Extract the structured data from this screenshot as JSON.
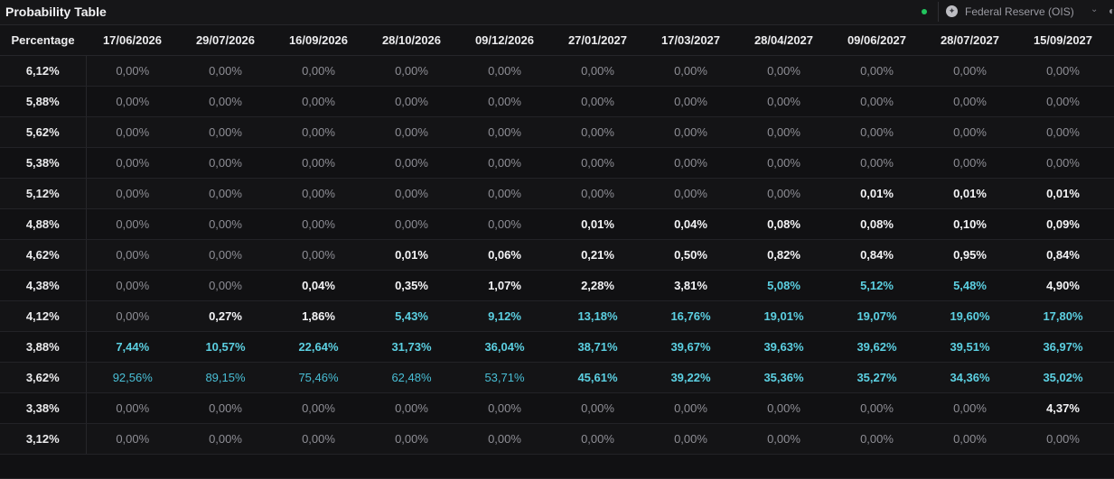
{
  "header": {
    "title": "Probability Table",
    "source_label": "Federal Reserve (OIS)",
    "source_icon": "fed-seal-icon",
    "status_color": "#22c55e"
  },
  "table": {
    "corner_label": "Percentage",
    "dates": [
      "17/06/2026",
      "29/07/2026",
      "16/09/2026",
      "28/10/2026",
      "09/12/2026",
      "27/01/2027",
      "17/03/2027",
      "28/04/2027",
      "09/06/2027",
      "28/07/2027",
      "15/09/2027"
    ],
    "rows": [
      {
        "rate": "6,12%",
        "values": [
          "0,00%",
          "0,00%",
          "0,00%",
          "0,00%",
          "0,00%",
          "0,00%",
          "0,00%",
          "0,00%",
          "0,00%",
          "0,00%",
          "0,00%"
        ]
      },
      {
        "rate": "5,88%",
        "values": [
          "0,00%",
          "0,00%",
          "0,00%",
          "0,00%",
          "0,00%",
          "0,00%",
          "0,00%",
          "0,00%",
          "0,00%",
          "0,00%",
          "0,00%"
        ]
      },
      {
        "rate": "5,62%",
        "values": [
          "0,00%",
          "0,00%",
          "0,00%",
          "0,00%",
          "0,00%",
          "0,00%",
          "0,00%",
          "0,00%",
          "0,00%",
          "0,00%",
          "0,00%"
        ]
      },
      {
        "rate": "5,38%",
        "values": [
          "0,00%",
          "0,00%",
          "0,00%",
          "0,00%",
          "0,00%",
          "0,00%",
          "0,00%",
          "0,00%",
          "0,00%",
          "0,00%",
          "0,00%"
        ]
      },
      {
        "rate": "5,12%",
        "values": [
          "0,00%",
          "0,00%",
          "0,00%",
          "0,00%",
          "0,00%",
          "0,00%",
          "0,00%",
          "0,00%",
          "0,01%",
          "0,01%",
          "0,01%"
        ]
      },
      {
        "rate": "4,88%",
        "values": [
          "0,00%",
          "0,00%",
          "0,00%",
          "0,00%",
          "0,00%",
          "0,01%",
          "0,04%",
          "0,08%",
          "0,08%",
          "0,10%",
          "0,09%"
        ]
      },
      {
        "rate": "4,62%",
        "values": [
          "0,00%",
          "0,00%",
          "0,00%",
          "0,01%",
          "0,06%",
          "0,21%",
          "0,50%",
          "0,82%",
          "0,84%",
          "0,95%",
          "0,84%"
        ]
      },
      {
        "rate": "4,38%",
        "values": [
          "0,00%",
          "0,00%",
          "0,04%",
          "0,35%",
          "1,07%",
          "2,28%",
          "3,81%",
          "5,08%",
          "5,12%",
          "5,48%",
          "4,90%"
        ]
      },
      {
        "rate": "4,12%",
        "values": [
          "0,00%",
          "0,27%",
          "1,86%",
          "5,43%",
          "9,12%",
          "13,18%",
          "16,76%",
          "19,01%",
          "19,07%",
          "19,60%",
          "17,80%"
        ]
      },
      {
        "rate": "3,88%",
        "values": [
          "7,44%",
          "10,57%",
          "22,64%",
          "31,73%",
          "36,04%",
          "38,71%",
          "39,67%",
          "39,63%",
          "39,62%",
          "39,51%",
          "36,97%"
        ]
      },
      {
        "rate": "3,62%",
        "values": [
          "92,56%",
          "89,15%",
          "75,46%",
          "62,48%",
          "53,71%",
          "45,61%",
          "39,22%",
          "35,36%",
          "35,27%",
          "34,36%",
          "35,02%"
        ]
      },
      {
        "rate": "3,38%",
        "values": [
          "0,00%",
          "0,00%",
          "0,00%",
          "0,00%",
          "0,00%",
          "0,00%",
          "0,00%",
          "0,00%",
          "0,00%",
          "0,00%",
          "4,37%"
        ]
      },
      {
        "rate": "3,12%",
        "values": [
          "0,00%",
          "0,00%",
          "0,00%",
          "0,00%",
          "0,00%",
          "0,00%",
          "0,00%",
          "0,00%",
          "0,00%",
          "0,00%",
          "0,00%"
        ]
      }
    ]
  }
}
